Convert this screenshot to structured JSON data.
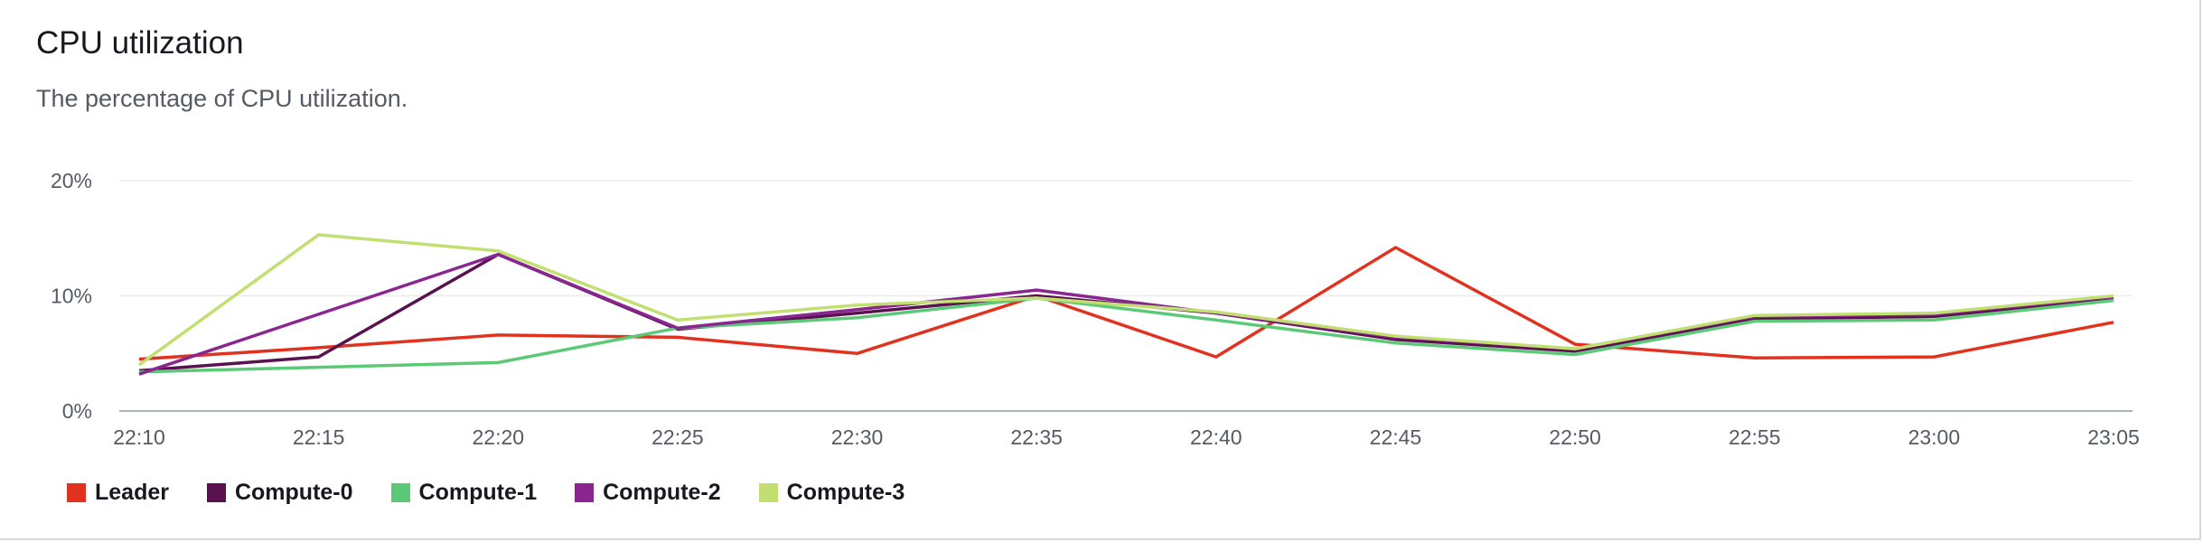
{
  "chart_data": {
    "type": "line",
    "title": "CPU utilization",
    "subtitle": "The percentage of CPU utilization.",
    "x": [
      "22:10",
      "22:15",
      "22:20",
      "22:25",
      "22:30",
      "22:35",
      "22:40",
      "22:45",
      "22:50",
      "22:55",
      "23:00",
      "23:05"
    ],
    "y_ticks": [
      "0%",
      "10%",
      "20%"
    ],
    "ylim": [
      0,
      20
    ],
    "grid": true,
    "legend_position": "bottom-left",
    "series": [
      {
        "name": "Leader",
        "color": "#e0321f",
        "values": [
          4.5,
          5.5,
          6.6,
          6.4,
          5.0,
          10.0,
          4.7,
          14.2,
          5.8,
          4.6,
          4.7,
          7.7
        ]
      },
      {
        "name": "Compute-0",
        "color": "#5a1150",
        "values": [
          3.5,
          4.7,
          13.6,
          7.1,
          8.5,
          10.0,
          8.5,
          6.2,
          5.2,
          8.0,
          8.2,
          9.8
        ]
      },
      {
        "name": "Compute-1",
        "color": "#5cc977",
        "values": [
          3.4,
          3.8,
          4.2,
          7.2,
          8.1,
          9.8,
          7.9,
          5.9,
          4.9,
          7.8,
          7.9,
          9.6
        ]
      },
      {
        "name": "Compute-2",
        "color": "#89268f",
        "values": [
          3.2,
          8.4,
          13.6,
          7.2,
          8.8,
          10.5,
          8.5,
          6.4,
          5.4,
          8.2,
          8.4,
          9.9
        ]
      },
      {
        "name": "Compute-3",
        "color": "#c2e072",
        "values": [
          4.0,
          15.3,
          13.9,
          7.9,
          9.2,
          9.8,
          8.6,
          6.5,
          5.4,
          8.3,
          8.5,
          10.0
        ]
      }
    ]
  }
}
